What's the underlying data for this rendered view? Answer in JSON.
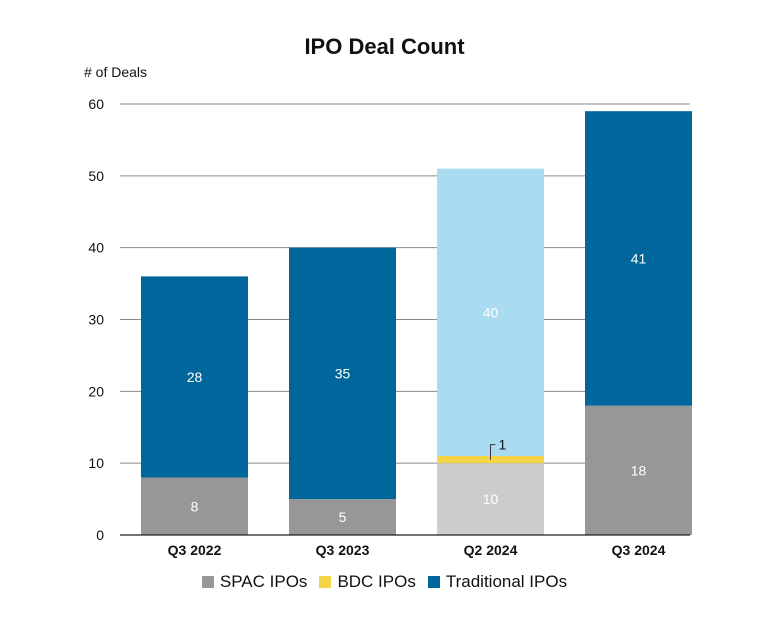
{
  "chart_data": {
    "type": "bar",
    "stacked": true,
    "title": "IPO Deal Count",
    "ylabel": "# of Deals",
    "xlabel": "",
    "ylim": [
      0,
      60
    ],
    "yticks": [
      0,
      10,
      20,
      30,
      40,
      50,
      60
    ],
    "grid": true,
    "legend_position": "bottom",
    "categories": [
      "Q3 2022",
      "Q3 2023",
      "Q2 2024",
      "Q3 2024"
    ],
    "series": [
      {
        "name": "SPAC IPOs",
        "values": [
          8,
          5,
          10,
          18
        ],
        "labels": [
          "8",
          "5",
          "10",
          "18"
        ],
        "color": "#979797",
        "point_colors": [
          "#979797",
          "#979797",
          "#cccccc",
          "#979797"
        ]
      },
      {
        "name": "BDC IPOs",
        "values": [
          0,
          0,
          1,
          0
        ],
        "labels": [
          "",
          "",
          "1",
          ""
        ],
        "color": "#f5d547",
        "point_colors": [
          "#f5d547",
          "#f5d547",
          "#f5d547",
          "#f5d547"
        ]
      },
      {
        "name": "Traditional IPOs",
        "values": [
          28,
          35,
          40,
          41
        ],
        "labels": [
          "28",
          "35",
          "40",
          "41"
        ],
        "color": "#00669b",
        "point_colors": [
          "#00669b",
          "#00669b",
          "#a9dcf0",
          "#00669b"
        ]
      }
    ]
  }
}
